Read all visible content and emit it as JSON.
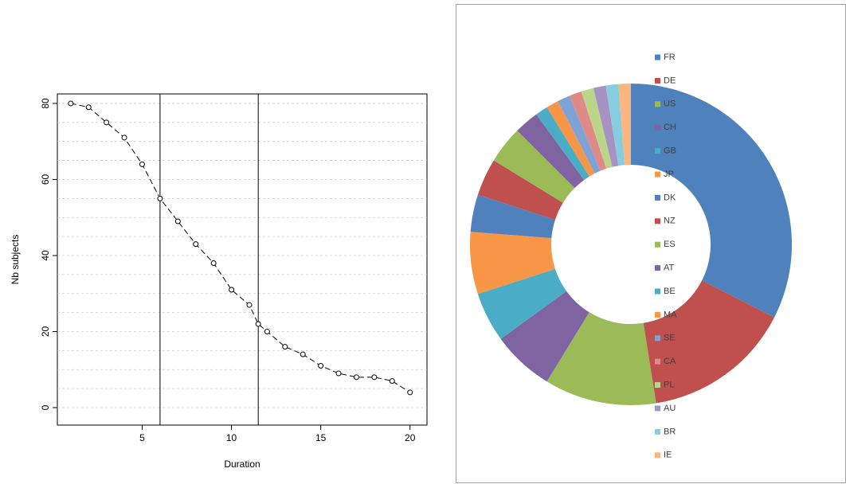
{
  "chart_data": [
    {
      "type": "line",
      "xlabel": "Duration",
      "ylabel": "Nb subjects",
      "x": [
        1,
        2,
        3,
        4,
        5,
        6,
        7,
        8,
        9,
        10,
        11,
        11.5,
        12,
        13,
        14,
        15,
        16,
        17,
        18,
        19,
        20
      ],
      "values": [
        80,
        79,
        75,
        71,
        64,
        55,
        49,
        43,
        38,
        31,
        27,
        22,
        20,
        16,
        14,
        11,
        9,
        8,
        8,
        7,
        4
      ],
      "color": "#000000",
      "xlim": [
        0.25,
        20.95
      ],
      "ylim": [
        -4.6,
        82.5
      ],
      "xticks": [
        5,
        10,
        15,
        20
      ],
      "yticks": [
        0,
        20,
        40,
        60,
        80
      ],
      "ygrid": [
        0,
        5,
        10,
        15,
        20,
        25,
        30,
        35,
        40,
        45,
        50,
        55,
        60,
        65,
        70,
        75,
        80
      ],
      "vlines": [
        6,
        11.5
      ]
    },
    {
      "type": "donut",
      "categories": [
        "FR",
        "DE",
        "US",
        "CH",
        "GB",
        "JP",
        "DK",
        "NZ",
        "ES",
        "AT",
        "BE",
        "MA",
        "SE",
        "CA",
        "PL",
        "AU",
        "BR",
        "IE"
      ],
      "values": [
        26,
        12,
        9,
        5,
        4,
        5,
        3,
        3,
        3,
        2,
        1,
        1,
        1,
        1,
        1,
        1,
        1,
        1
      ],
      "colors": [
        "#4F81BD",
        "#C0504D",
        "#9BBB59",
        "#8064A2",
        "#4BACC6",
        "#F79646",
        "#4F81BD",
        "#C0504D",
        "#9BBB59",
        "#8064A2",
        "#4BACC6",
        "#F79646",
        "#7FA3D6",
        "#E08A88",
        "#BBD68A",
        "#A693C3",
        "#86CDE0",
        "#F9B680"
      ],
      "legend": "right"
    }
  ]
}
